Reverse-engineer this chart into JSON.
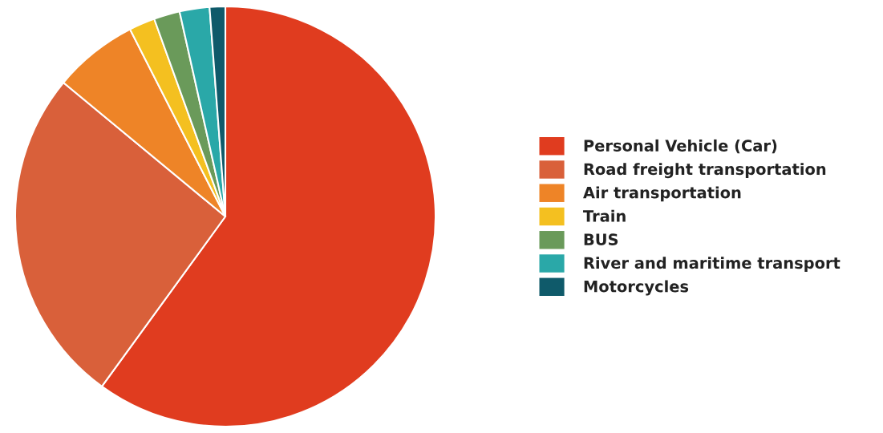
{
  "chart_data": {
    "type": "pie",
    "categories": [
      "Personal Vehicle (Car)",
      "Road freight transportation",
      "Air transportation",
      "Train",
      "BUS",
      "River and maritime transport",
      "Motorcycles"
    ],
    "values": [
      60,
      26,
      6.5,
      2,
      2,
      2.3,
      1.2
    ],
    "colors": [
      "#e03c1f",
      "#d9603a",
      "#ee8427",
      "#f4c020",
      "#6a9a5a",
      "#2aa8a8",
      "#0f5a6a"
    ],
    "legend": "right"
  }
}
